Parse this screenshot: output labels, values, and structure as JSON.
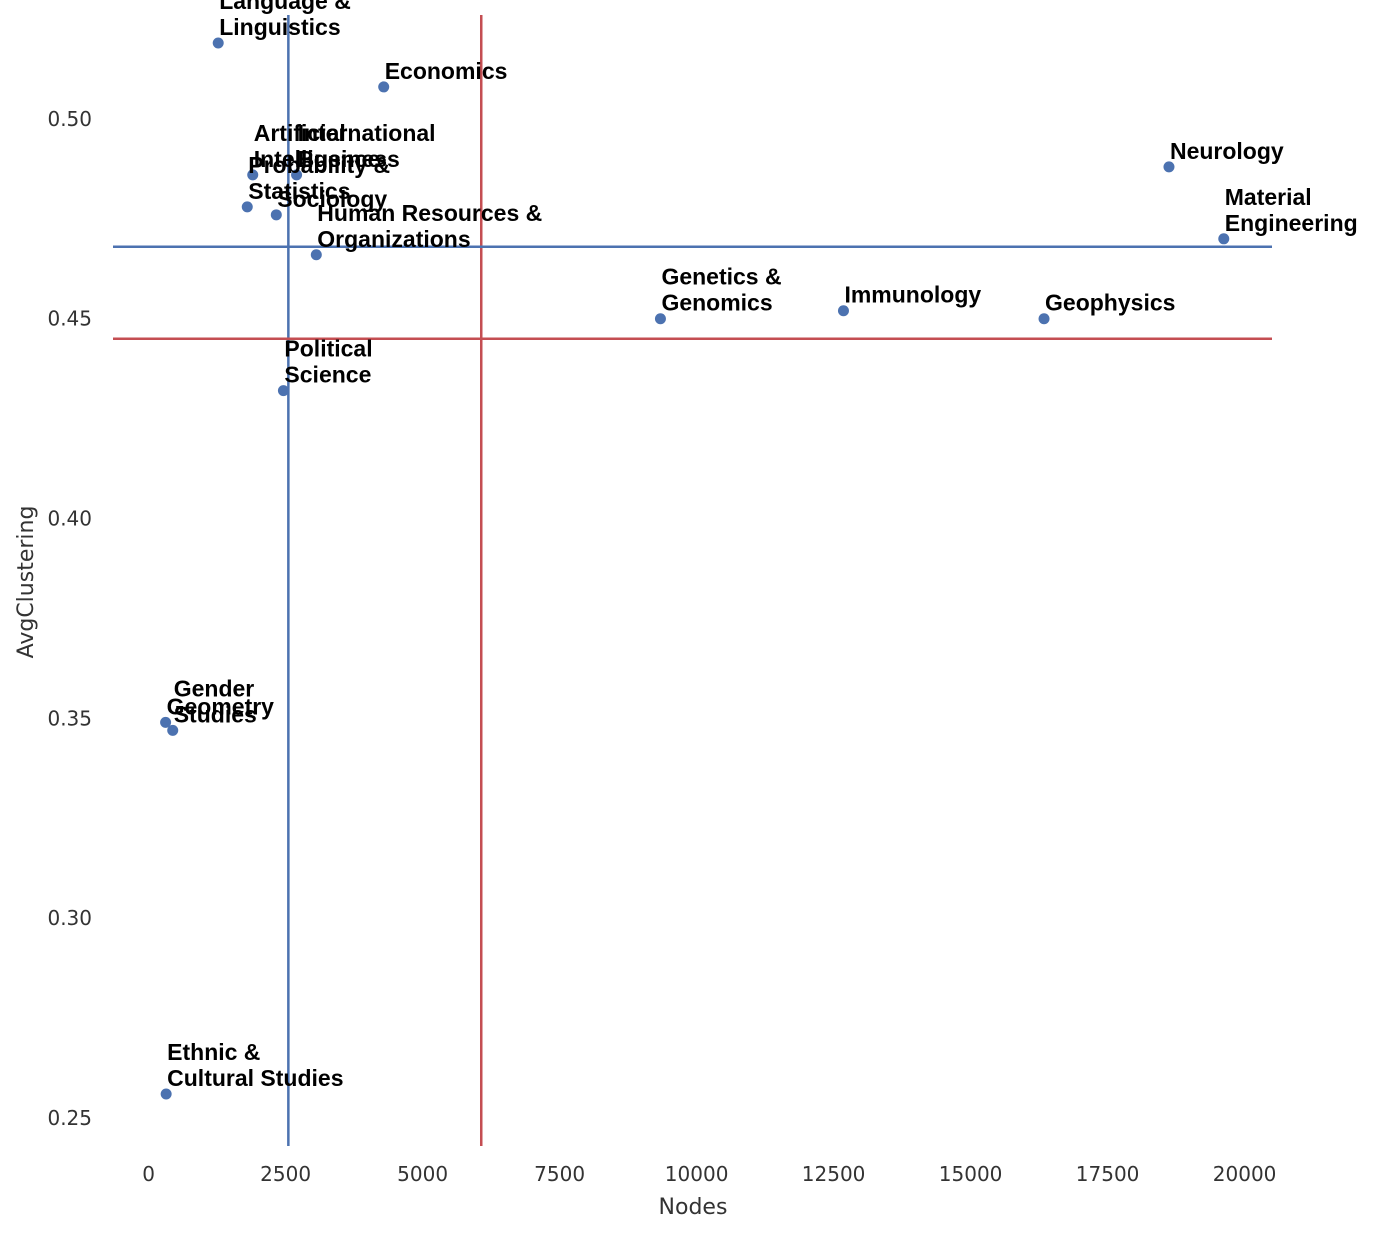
{
  "chart_data": {
    "type": "scatter",
    "title": "",
    "xlabel": "Nodes",
    "ylabel": "AvgClustering",
    "xlim": [
      -650,
      20500
    ],
    "ylim": [
      0.243,
      0.526
    ],
    "xticks": [
      0,
      2500,
      5000,
      7500,
      10000,
      12500,
      15000,
      17500,
      20000
    ],
    "yticks": [
      0.25,
      0.3,
      0.35,
      0.4,
      0.45,
      0.5
    ],
    "grid": false,
    "point_color": "#4c72b0",
    "reference_lines": [
      {
        "orientation": "vertical",
        "x": 2550,
        "color": "#4c72b0"
      },
      {
        "orientation": "vertical",
        "x": 6070,
        "color": "#c44e52"
      },
      {
        "orientation": "horizontal",
        "y": 0.468,
        "color": "#4c72b0"
      },
      {
        "orientation": "horizontal",
        "y": 0.445,
        "color": "#c44e52"
      }
    ],
    "points": [
      {
        "label": [
          "Language &",
          "Linguistics"
        ],
        "x": 1270,
        "y": 0.519
      },
      {
        "label": [
          "Economics"
        ],
        "x": 4290,
        "y": 0.508
      },
      {
        "label": [
          "Artificial",
          "Intelligence"
        ],
        "x": 1900,
        "y": 0.486
      },
      {
        "label": [
          "International",
          "Business"
        ],
        "x": 2700,
        "y": 0.486
      },
      {
        "label": [
          "Probability &",
          "Statistics"
        ],
        "x": 1800,
        "y": 0.478
      },
      {
        "label": [
          "Sociology"
        ],
        "x": 2330,
        "y": 0.476
      },
      {
        "label": [
          "Human Resources &",
          "Organizations"
        ],
        "x": 3060,
        "y": 0.466
      },
      {
        "label": [
          "Neurology"
        ],
        "x": 18620,
        "y": 0.488
      },
      {
        "label": [
          "Material",
          "Engineering"
        ],
        "x": 19620,
        "y": 0.47
      },
      {
        "label": [
          "Genetics &",
          "Genomics"
        ],
        "x": 9340,
        "y": 0.45
      },
      {
        "label": [
          "Immunology"
        ],
        "x": 12680,
        "y": 0.452
      },
      {
        "label": [
          "Geophysics"
        ],
        "x": 16340,
        "y": 0.45
      },
      {
        "label": [
          "Political",
          "Science"
        ],
        "x": 2460,
        "y": 0.432
      },
      {
        "label": [
          "Gender",
          "Studies"
        ],
        "x": 440,
        "y": 0.347
      },
      {
        "label": [
          "Geometry"
        ],
        "x": 310,
        "y": 0.349
      },
      {
        "label": [
          "Ethnic &",
          "Cultural Studies"
        ],
        "x": 320,
        "y": 0.256
      }
    ]
  }
}
